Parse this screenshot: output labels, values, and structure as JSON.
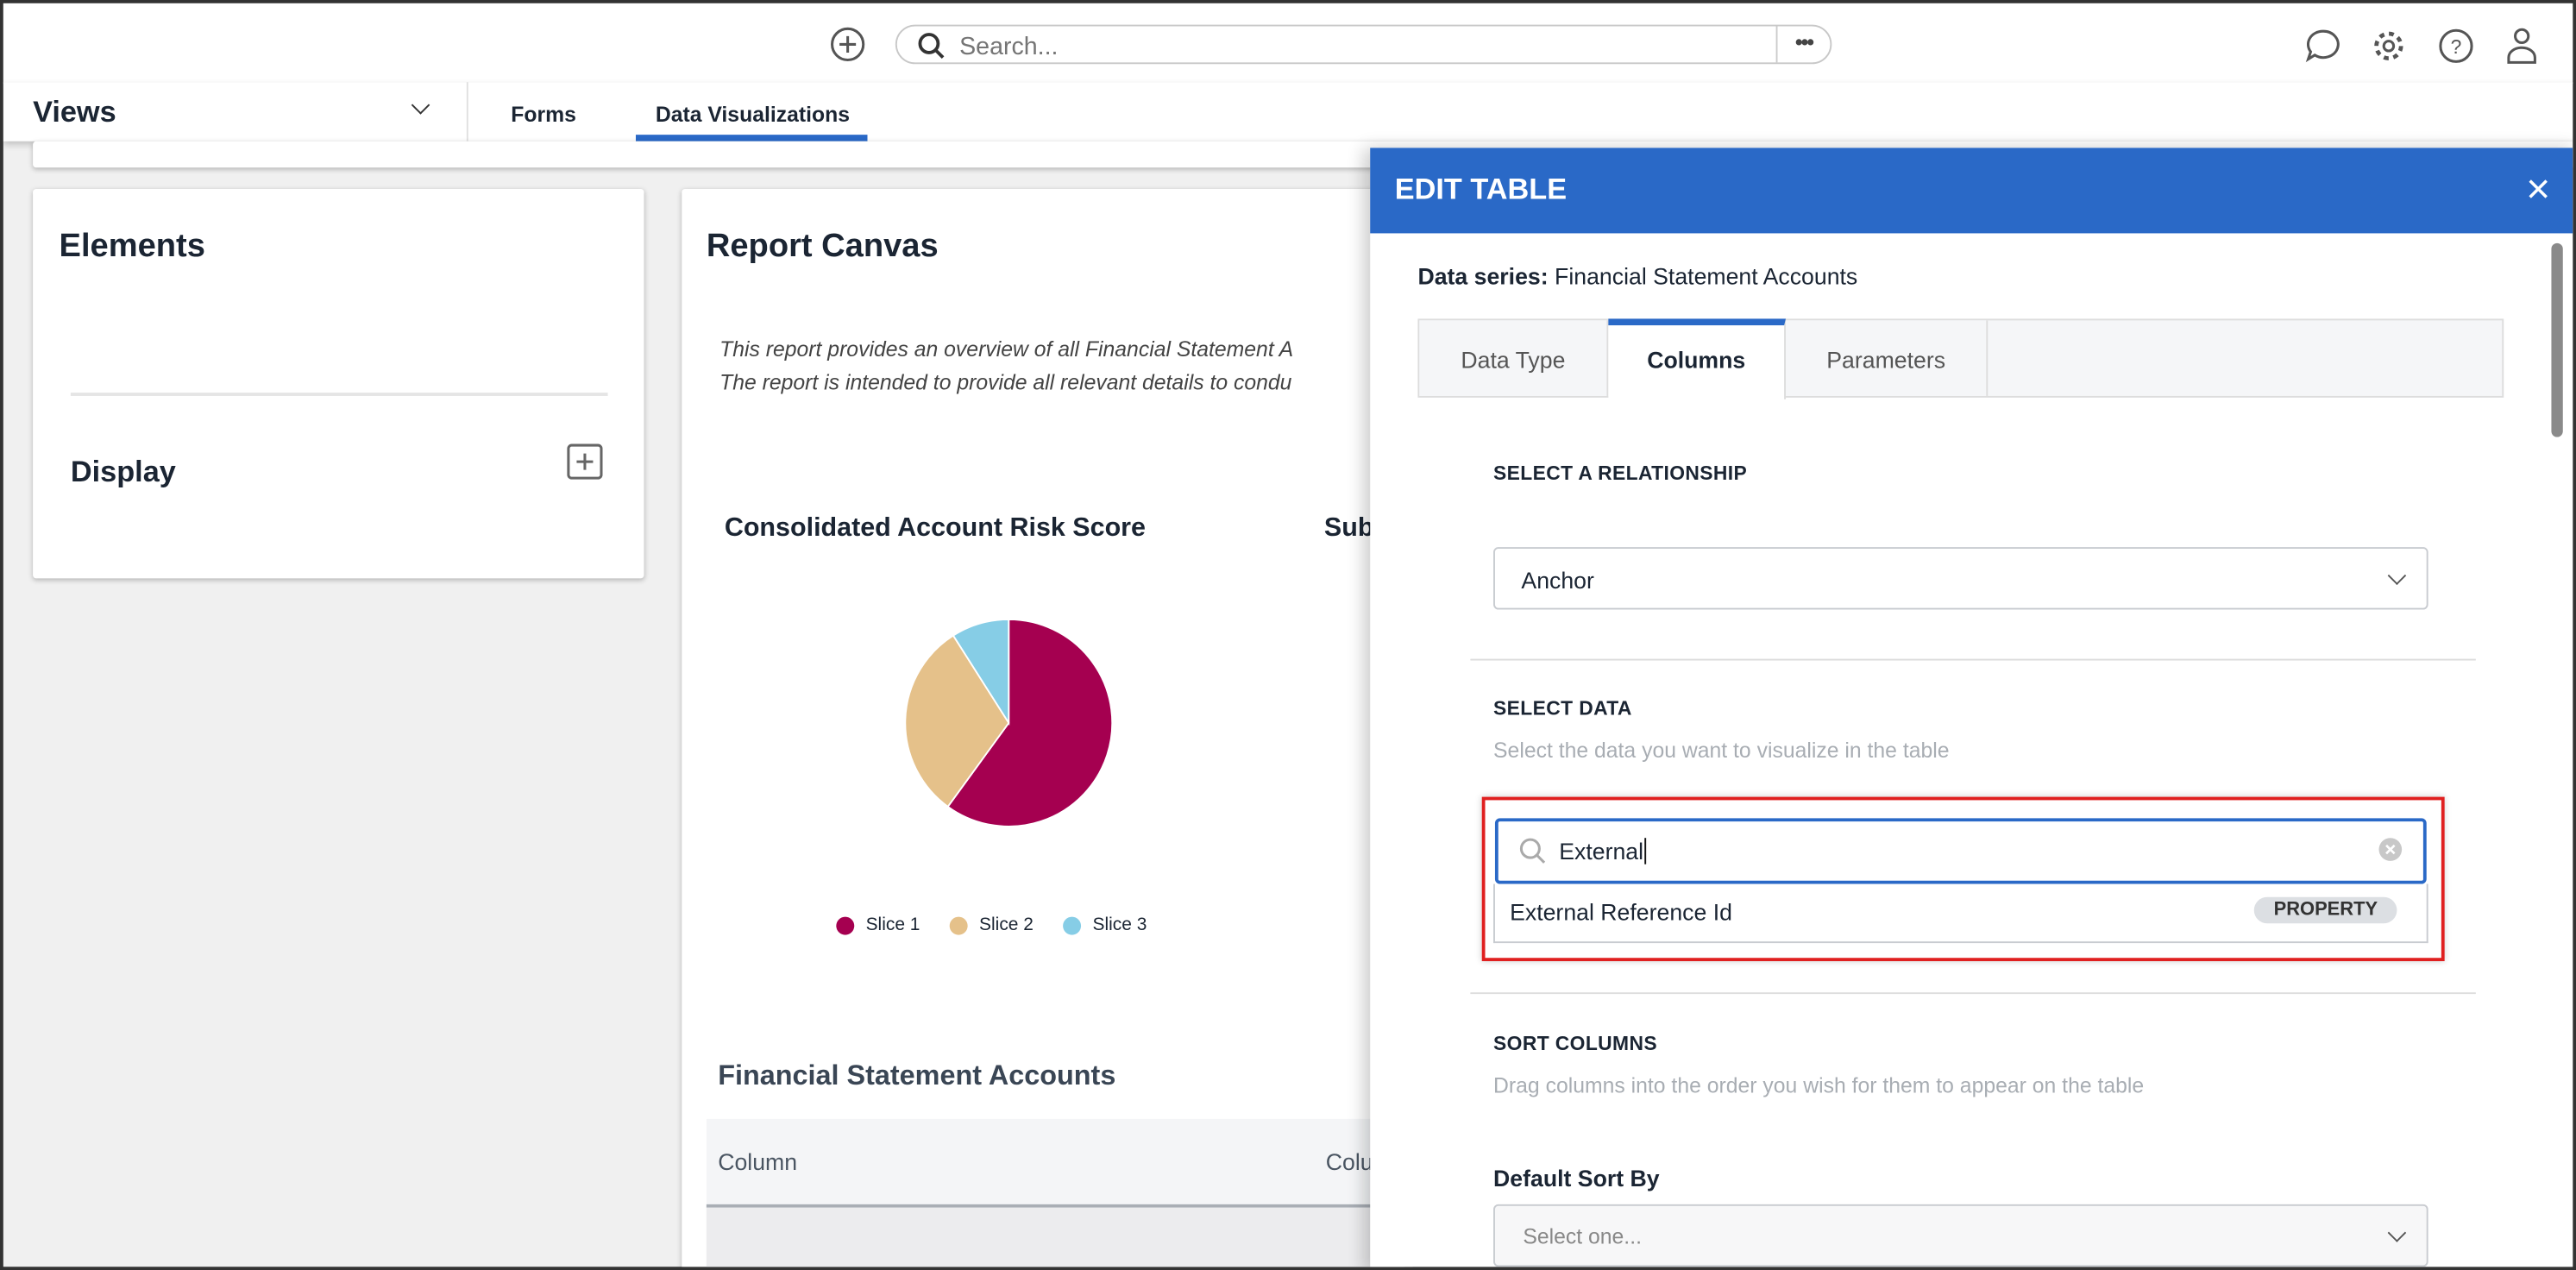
{
  "topbar": {
    "search_placeholder": "Search...",
    "more_label": "•••",
    "icons": [
      "add-circle-icon",
      "search-icon",
      "chat-icon",
      "gear-icon",
      "help-icon",
      "user-icon"
    ]
  },
  "nav": {
    "views_label": "Views",
    "tabs": [
      {
        "label": "Forms",
        "active": false
      },
      {
        "label": "Data Visualizations",
        "active": true
      }
    ]
  },
  "elements_card": {
    "title": "Elements",
    "display_label": "Display"
  },
  "canvas": {
    "title": "Report Canvas",
    "description_line1": "This report provides an overview of all Financial Statement A",
    "description_line2": "The report is intended to provide all relevant details to condu",
    "chart_title": "Consolidated Account Risk Score",
    "chart2_title_partial": "Sub",
    "table_title": "Financial Statement Accounts",
    "table_columns": [
      "Column",
      "Colu"
    ]
  },
  "chart_data": {
    "type": "pie",
    "title": "Consolidated Account Risk Score",
    "categories": [
      "Slice 1",
      "Slice 2",
      "Slice 3"
    ],
    "values": [
      60,
      31,
      9
    ],
    "colors": [
      "#a50050",
      "#e5c18a",
      "#86cde6"
    ],
    "legend": "bottom"
  },
  "panel": {
    "title": "EDIT TABLE",
    "data_series_label": "Data series:",
    "data_series_value": "Financial Statement Accounts",
    "tabs": [
      {
        "label": "Data Type",
        "active": false
      },
      {
        "label": "Columns",
        "active": true
      },
      {
        "label": "Parameters",
        "active": false
      }
    ],
    "relationship_label": "SELECT A RELATIONSHIP",
    "relationship_value": "Anchor",
    "select_data_label": "SELECT DATA",
    "select_data_hint": "Select the data you want to visualize in the table",
    "search_value": "External",
    "result_label": "External Reference Id",
    "result_badge": "PROPERTY",
    "sort_label": "SORT COLUMNS",
    "sort_hint": "Drag columns into the order you wish for them to appear on the table",
    "default_sort_label": "Default Sort By",
    "default_sort_placeholder": "Select one..."
  },
  "colors": {
    "accent": "#2a69c7",
    "highlight": "#e02020"
  }
}
